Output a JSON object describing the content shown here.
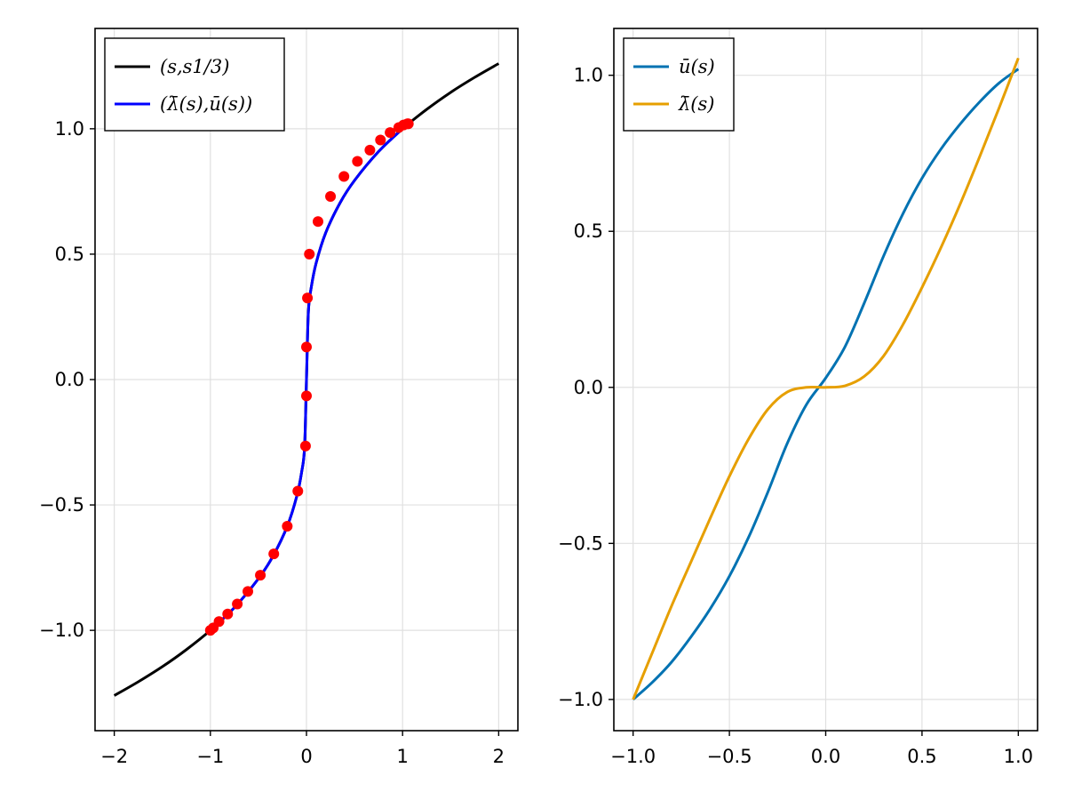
{
  "chart_data": [
    {
      "type": "line",
      "title": "",
      "xlabel": "",
      "ylabel": "",
      "xlim": [
        -2.2,
        2.2
      ],
      "ylim": [
        -1.4,
        1.4
      ],
      "xticks": [
        -2,
        -1,
        0,
        1,
        2
      ],
      "xtick_labels": [
        "−2",
        "−1",
        "0",
        "1",
        "2"
      ],
      "yticks": [
        -1.0,
        -0.5,
        0.0,
        0.5,
        1.0
      ],
      "ytick_labels": [
        "−1.0",
        "−0.5",
        "0.0",
        "0.5",
        "1.0"
      ],
      "grid": true,
      "legend_position": "top-left",
      "series": [
        {
          "name": "(s,s^{1/3})",
          "legend_label": "(s,s1/3)",
          "color": "#000000",
          "x": [
            -2.0,
            -1.75,
            -1.5,
            -1.25,
            -1.0,
            -0.75,
            -0.5,
            -0.35,
            -0.2,
            -0.1,
            -0.05,
            -0.02,
            0.0,
            0.02,
            0.05,
            0.1,
            0.2,
            0.35,
            0.5,
            0.75,
            1.0,
            1.25,
            1.5,
            1.75,
            2.0
          ],
          "y": [
            -1.26,
            -1.205,
            -1.145,
            -1.077,
            -1.0,
            -0.909,
            -0.794,
            -0.705,
            -0.585,
            -0.464,
            -0.368,
            -0.271,
            0.0,
            0.271,
            0.368,
            0.464,
            0.585,
            0.705,
            0.794,
            0.909,
            1.0,
            1.077,
            1.145,
            1.205,
            1.26
          ]
        },
        {
          "name": "(λ̄(s),ū(s))",
          "legend_label": "(λ̄(s),ū(s))",
          "color": "#0000ff",
          "x": [
            -1.0,
            -0.75,
            -0.5,
            -0.35,
            -0.2,
            -0.1,
            -0.05,
            -0.02,
            0.0,
            0.02,
            0.05,
            0.1,
            0.2,
            0.35,
            0.5,
            0.75,
            1.0,
            1.06
          ],
          "y": [
            -1.0,
            -0.909,
            -0.794,
            -0.705,
            -0.585,
            -0.464,
            -0.368,
            -0.271,
            0.0,
            0.271,
            0.368,
            0.464,
            0.585,
            0.705,
            0.794,
            0.909,
            1.0,
            1.02
          ]
        },
        {
          "name": "points",
          "type": "scatter",
          "color": "#ff0000",
          "x": [
            -1.0,
            -0.97,
            -0.91,
            -0.82,
            -0.72,
            -0.61,
            -0.48,
            -0.34,
            -0.2,
            -0.09,
            -0.01,
            0.0,
            0.0,
            0.01,
            0.03,
            0.12,
            0.25,
            0.39,
            0.53,
            0.66,
            0.77,
            0.87,
            0.96,
            1.01,
            1.05,
            1.06
          ],
          "y": [
            -1.0,
            -0.99,
            -0.965,
            -0.935,
            -0.895,
            -0.845,
            -0.78,
            -0.695,
            -0.585,
            -0.445,
            -0.265,
            -0.065,
            0.13,
            0.325,
            0.5,
            0.63,
            0.73,
            0.81,
            0.87,
            0.915,
            0.955,
            0.985,
            1.005,
            1.015,
            1.02,
            1.02
          ]
        }
      ]
    },
    {
      "type": "line",
      "title": "",
      "xlabel": "",
      "ylabel": "",
      "xlim": [
        -1.1,
        1.1
      ],
      "ylim": [
        -1.1,
        1.15
      ],
      "xticks": [
        -1.0,
        -0.5,
        0.0,
        0.5,
        1.0
      ],
      "xtick_labels": [
        "−1.0",
        "−0.5",
        "0.0",
        "0.5",
        "1.0"
      ],
      "yticks": [
        -1.0,
        -0.5,
        0.0,
        0.5,
        1.0
      ],
      "ytick_labels": [
        "−1.0",
        "−0.5",
        "0.0",
        "0.5",
        "1.0"
      ],
      "grid": true,
      "legend_position": "top-left",
      "series": [
        {
          "name": "ū(s)",
          "legend_label": "ū(s)",
          "color": "#0072b2",
          "x": [
            -1.0,
            -0.9,
            -0.8,
            -0.7,
            -0.6,
            -0.5,
            -0.4,
            -0.3,
            -0.2,
            -0.1,
            0.0,
            0.1,
            0.2,
            0.3,
            0.4,
            0.5,
            0.6,
            0.7,
            0.8,
            0.9,
            1.0
          ],
          "y": [
            -1.0,
            -0.945,
            -0.88,
            -0.8,
            -0.71,
            -0.605,
            -0.48,
            -0.335,
            -0.18,
            -0.055,
            0.03,
            0.13,
            0.27,
            0.42,
            0.555,
            0.67,
            0.765,
            0.845,
            0.915,
            0.975,
            1.02
          ]
        },
        {
          "name": "λ̄(s)",
          "legend_label": "λ̄(s)",
          "color": "#e69f00",
          "x": [
            -1.0,
            -0.9,
            -0.8,
            -0.7,
            -0.6,
            -0.5,
            -0.4,
            -0.3,
            -0.2,
            -0.1,
            0.0,
            0.1,
            0.2,
            0.3,
            0.4,
            0.5,
            0.6,
            0.7,
            0.8,
            0.9,
            1.0
          ],
          "y": [
            -1.0,
            -0.85,
            -0.7,
            -0.56,
            -0.42,
            -0.285,
            -0.165,
            -0.07,
            -0.015,
            0.0,
            0.0,
            0.005,
            0.035,
            0.1,
            0.2,
            0.32,
            0.45,
            0.59,
            0.74,
            0.895,
            1.055
          ]
        }
      ]
    }
  ]
}
